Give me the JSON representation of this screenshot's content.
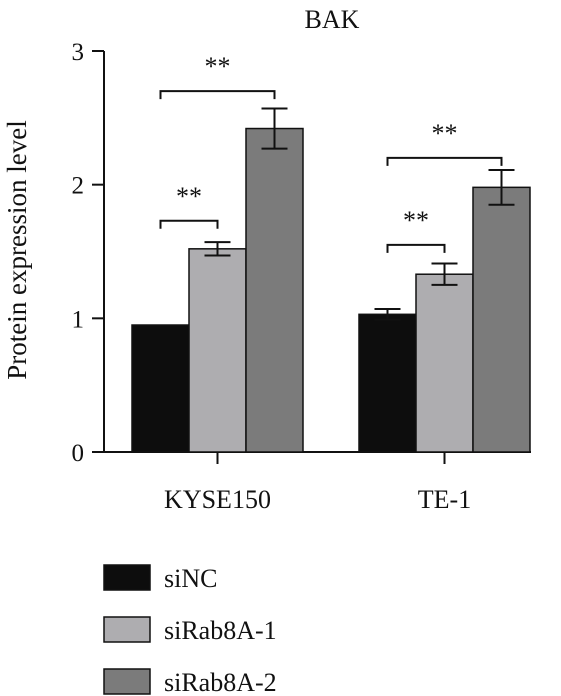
{
  "chart_data": {
    "type": "bar",
    "title": "BAK",
    "ylabel": "Protein expression level",
    "xlabel": "",
    "ylim": [
      0,
      3
    ],
    "yticks": [
      "0",
      "1",
      "2",
      "3"
    ],
    "categories": [
      "KYSE150",
      "TE-1"
    ],
    "series": [
      {
        "name": "siNC",
        "color": "#0d0d0d",
        "values": [
          0.95,
          1.03
        ],
        "errors": [
          0.0,
          0.04
        ]
      },
      {
        "name": "siRab8A-1",
        "color": "#aeadb0",
        "values": [
          1.52,
          1.33
        ],
        "errors": [
          0.05,
          0.08
        ]
      },
      {
        "name": "siRab8A-2",
        "color": "#7b7b7b",
        "values": [
          2.42,
          1.98
        ],
        "errors": [
          0.15,
          0.13
        ]
      }
    ],
    "significance": [
      {
        "category": 0,
        "from": 0,
        "to": 1,
        "y": 1.73,
        "label": "**"
      },
      {
        "category": 0,
        "from": 0,
        "to": 2,
        "y": 2.7,
        "label": "**"
      },
      {
        "category": 1,
        "from": 0,
        "to": 1,
        "y": 1.55,
        "label": "**"
      },
      {
        "category": 1,
        "from": 0,
        "to": 2,
        "y": 2.2,
        "label": "**"
      }
    ],
    "legend_position": "bottom-left",
    "grid": false
  }
}
